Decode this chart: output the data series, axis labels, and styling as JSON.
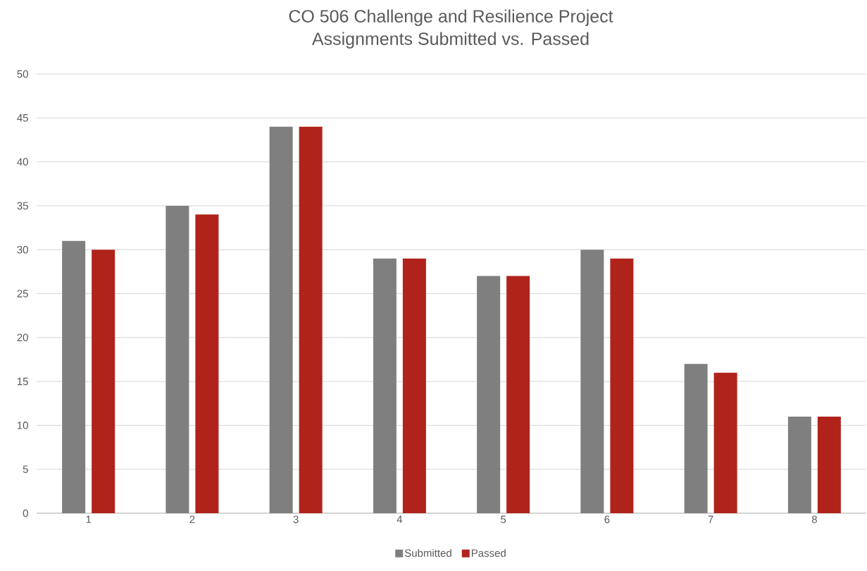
{
  "chart_data": {
    "type": "bar",
    "title": "CO 506 Challenge and Resilience Project",
    "subtitle": "Assignments Submitted vs. Passed",
    "categories": [
      "1",
      "2",
      "3",
      "4",
      "5",
      "6",
      "7",
      "8"
    ],
    "series": [
      {
        "name": "Submitted",
        "color": "#7f7f7f",
        "values": [
          31,
          35,
          44,
          29,
          27,
          30,
          17,
          11
        ]
      },
      {
        "name": "Passed",
        "color": "#b0231a",
        "values": [
          30,
          34,
          44,
          29,
          27,
          29,
          16,
          11
        ]
      }
    ],
    "ylim": [
      0,
      50
    ],
    "yticks": [
      0,
      5,
      10,
      15,
      20,
      25,
      30,
      35,
      40,
      45,
      50
    ],
    "grid": "y",
    "legend": "bottom"
  }
}
